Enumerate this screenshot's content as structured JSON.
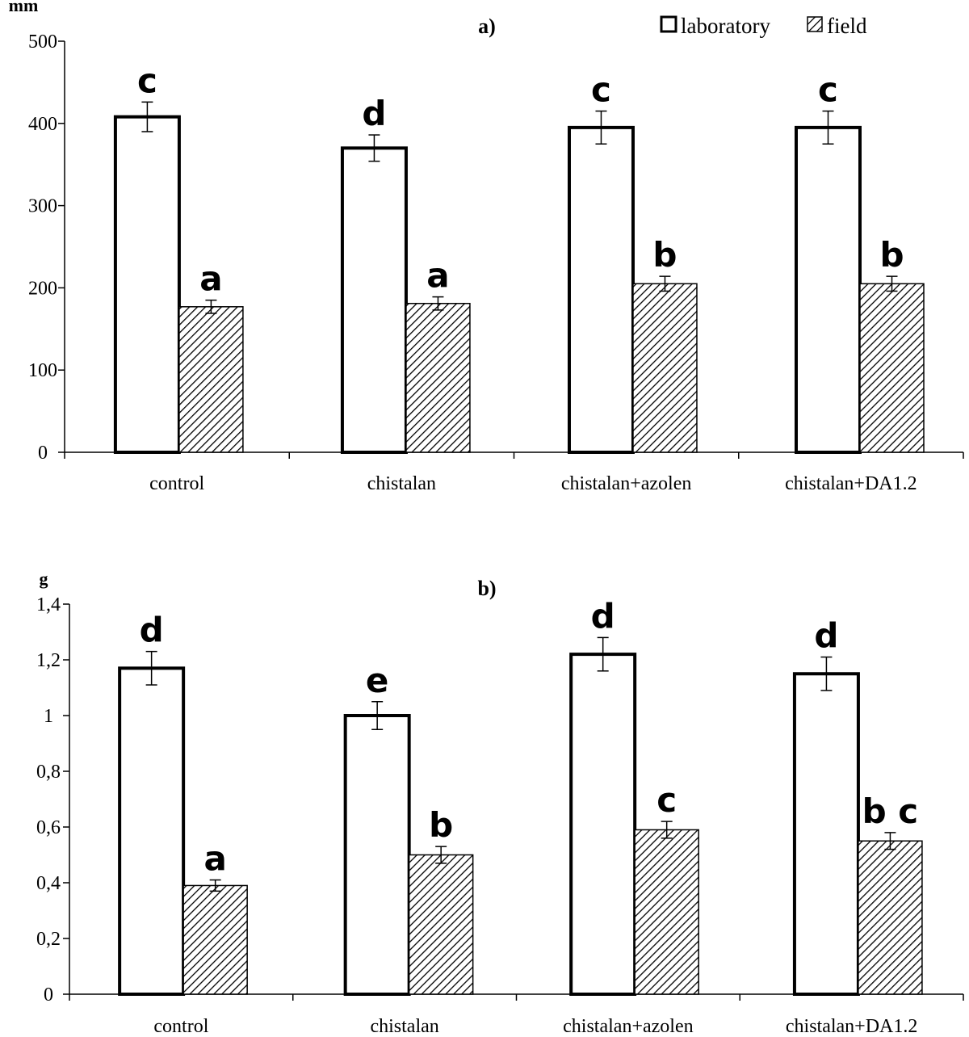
{
  "legend": {
    "laboratory": "laboratory",
    "field": "field"
  },
  "chart_data": [
    {
      "type": "bar",
      "panel_label": "a)",
      "y_unit": "mm",
      "categories": [
        "control",
        "chistalan",
        "chistalan+azolen",
        "chistalan+DA1.2"
      ],
      "ylim": [
        0,
        500
      ],
      "yticks": [
        0,
        100,
        200,
        300,
        400,
        500
      ],
      "ytick_labels": [
        "0",
        "100",
        "200",
        "300",
        "400",
        "500"
      ],
      "grid": false,
      "legend_position": "top-right",
      "series": [
        {
          "name": "laboratory",
          "fill": "white",
          "values": [
            408,
            370,
            395,
            395
          ],
          "errors": [
            18,
            16,
            20,
            20
          ],
          "letters": [
            "c",
            "d",
            "c",
            "c"
          ]
        },
        {
          "name": "field",
          "fill": "hatched",
          "values": [
            177,
            181,
            205,
            205
          ],
          "errors": [
            8,
            8,
            9,
            9
          ],
          "letters": [
            "a",
            "a",
            "b",
            "b"
          ]
        }
      ]
    },
    {
      "type": "bar",
      "panel_label": "b)",
      "y_unit": "g",
      "categories": [
        "control",
        "chistalan",
        "chistalan+azolen",
        "chistalan+DA1.2"
      ],
      "ylim": [
        0,
        1.4
      ],
      "yticks": [
        0,
        0.2,
        0.4,
        0.6,
        0.8,
        1.0,
        1.2,
        1.4
      ],
      "ytick_labels": [
        "0",
        "0,2",
        "0,4",
        "0,6",
        "0,8",
        "1",
        "1,2",
        "1,4"
      ],
      "grid": false,
      "series": [
        {
          "name": "laboratory",
          "fill": "white",
          "values": [
            1.17,
            1.0,
            1.22,
            1.15
          ],
          "errors": [
            0.06,
            0.05,
            0.06,
            0.06
          ],
          "letters": [
            "d",
            "e",
            "d",
            "d"
          ]
        },
        {
          "name": "field",
          "fill": "hatched",
          "values": [
            0.39,
            0.5,
            0.59,
            0.55
          ],
          "errors": [
            0.02,
            0.03,
            0.03,
            0.03
          ],
          "letters": [
            "a",
            "b",
            "c",
            "b c"
          ]
        }
      ]
    }
  ]
}
